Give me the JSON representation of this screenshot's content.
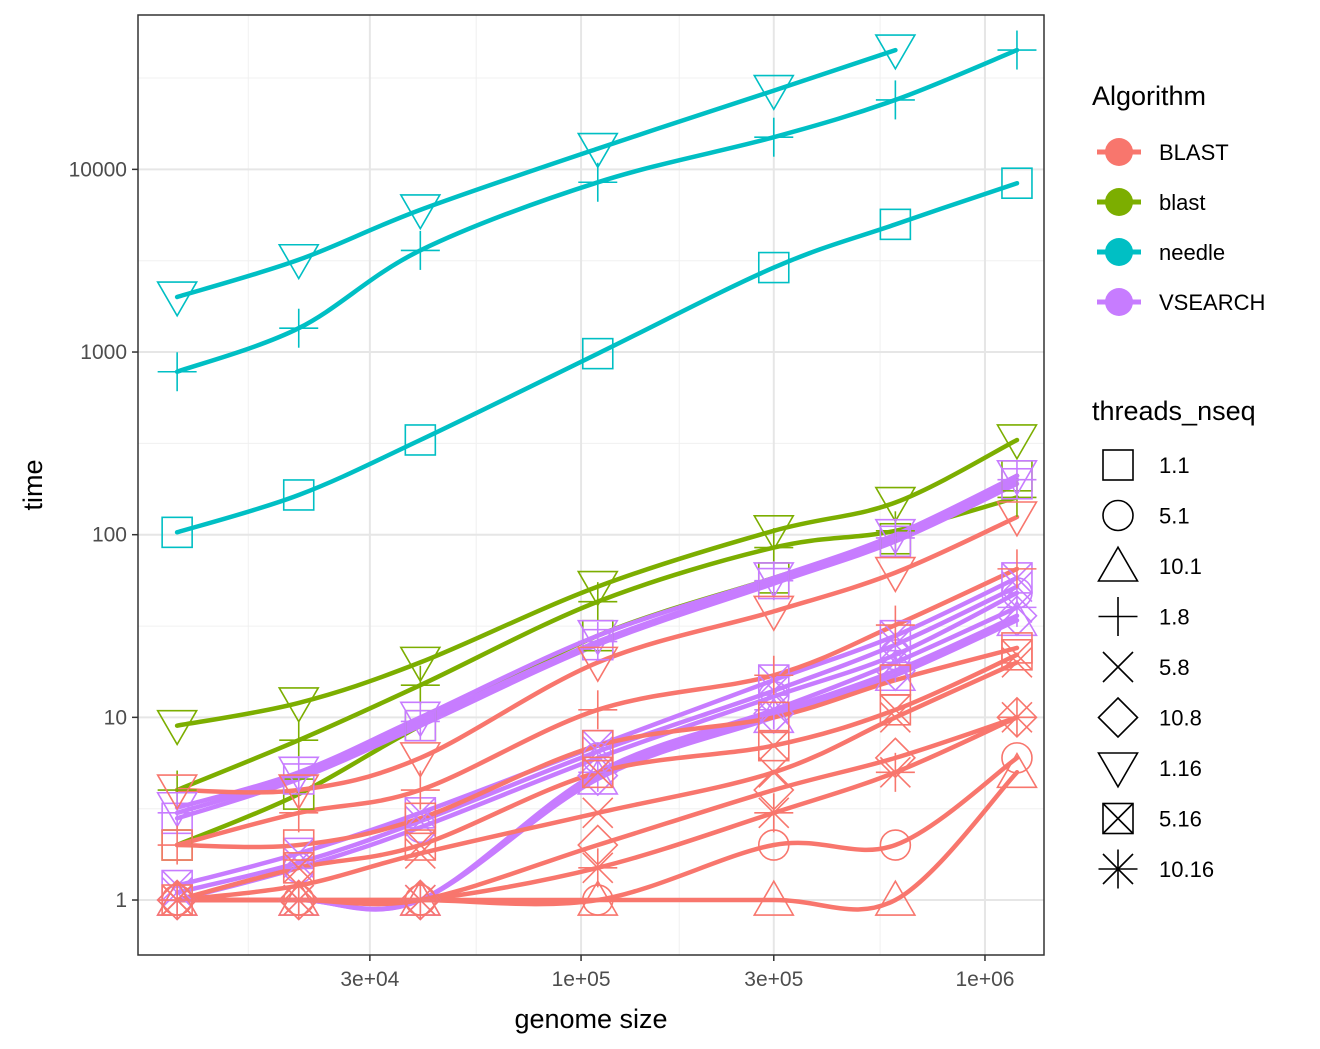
{
  "chart_data": {
    "type": "line",
    "xlabel": "genome size",
    "ylabel": "time",
    "x_scale": "log10",
    "y_scale": "log10",
    "xlim": [
      8000,
      1400000
    ],
    "ylim": [
      0.5,
      70000
    ],
    "x_ticks": [
      {
        "value": 30000,
        "label": "3e+04"
      },
      {
        "value": 100000,
        "label": "1e+05"
      },
      {
        "value": 300000,
        "label": "3e+05"
      },
      {
        "value": 1000000,
        "label": "1e+06"
      }
    ],
    "x_minor_gridlines": [
      15000,
      55000,
      175000,
      550000
    ],
    "y_ticks": [
      {
        "value": 1,
        "label": "1"
      },
      {
        "value": 10,
        "label": "10"
      },
      {
        "value": 100,
        "label": "100"
      },
      {
        "value": 1000,
        "label": "1000"
      },
      {
        "value": 10000,
        "label": "10000"
      }
    ],
    "y_minor_gridlines": [
      3.16,
      31.6,
      316,
      3162,
      31623
    ],
    "grid": true,
    "legend_position": "right",
    "legend_algorithm": {
      "title": "Algorithm",
      "items": [
        {
          "label": " BLAST",
          "color": "#F8766D"
        },
        {
          "label": "blast",
          "color": "#7CAE00"
        },
        {
          "label": "needle",
          "color": "#00BFC4"
        },
        {
          "label": "VSEARCH",
          "color": "#C77CFF"
        }
      ]
    },
    "legend_threads": {
      "title": "threads_nseq",
      "items": [
        {
          "label": "1.1",
          "shape": "square"
        },
        {
          "label": "5.1",
          "shape": "circle"
        },
        {
          "label": "10.1",
          "shape": "triangle-up"
        },
        {
          "label": "1.8",
          "shape": "plus"
        },
        {
          "label": "5.8",
          "shape": "cross"
        },
        {
          "label": "10.8",
          "shape": "diamond"
        },
        {
          "label": "1.16",
          "shape": "triangle-down"
        },
        {
          "label": "5.16",
          "shape": "square-cross"
        },
        {
          "label": "10.16",
          "shape": "asterisk"
        }
      ]
    },
    "x": [
      10000,
      20000,
      40000,
      110000,
      300000,
      600000,
      1200000
    ],
    "series": [
      {
        "algorithm": "needle",
        "threads_nseq": "1.16",
        "values": [
          2000,
          3200,
          6000,
          13000,
          27000,
          45000,
          null
        ]
      },
      {
        "algorithm": "needle",
        "threads_nseq": "1.8",
        "values": [
          780,
          1350,
          3600,
          8500,
          15000,
          24000,
          45000
        ]
      },
      {
        "algorithm": "needle",
        "threads_nseq": "1.1",
        "values": [
          103,
          165,
          330,
          980,
          2900,
          5000,
          8400
        ]
      },
      {
        "algorithm": "blast",
        "threads_nseq": "1.16",
        "values": [
          9,
          12,
          20,
          52,
          105,
          150,
          330
        ]
      },
      {
        "algorithm": "blast",
        "threads_nseq": "1.8",
        "values": [
          4,
          7.5,
          15,
          43,
          85,
          105,
          160
        ]
      },
      {
        "algorithm": "blast",
        "threads_nseq": "1.1",
        "values": [
          2,
          3.8,
          9,
          28,
          58,
          95,
          210
        ]
      },
      {
        "algorithm": "VSEARCH",
        "threads_nseq": "1.16",
        "values": [
          3.2,
          5,
          10,
          28,
          58,
          100,
          210
        ]
      },
      {
        "algorithm": "VSEARCH",
        "threads_nseq": "1.8",
        "values": [
          3,
          4.8,
          9.5,
          26,
          56,
          96,
          200
        ]
      },
      {
        "algorithm": "VSEARCH",
        "threads_nseq": "1.1",
        "values": [
          2.8,
          4.6,
          9,
          25,
          54,
          92,
          190
        ]
      },
      {
        "algorithm": "VSEARCH",
        "threads_nseq": "5.16",
        "values": [
          1.2,
          1.8,
          3,
          7,
          16,
          28,
          58
        ]
      },
      {
        "algorithm": "VSEARCH",
        "threads_nseq": "5.8",
        "values": [
          1.1,
          1.6,
          2.7,
          6.5,
          14,
          25,
          52
        ]
      },
      {
        "algorithm": "VSEARCH",
        "threads_nseq": "5.1",
        "values": [
          1,
          1.5,
          2.5,
          6,
          13,
          22,
          48
        ]
      },
      {
        "algorithm": "VSEARCH",
        "threads_nseq": "10.16",
        "values": [
          1,
          1,
          1,
          5,
          11,
          20,
          40
        ]
      },
      {
        "algorithm": "VSEARCH",
        "threads_nseq": "10.8",
        "values": [
          1,
          1,
          1,
          4.8,
          10.5,
          18,
          36
        ]
      },
      {
        "algorithm": "VSEARCH",
        "threads_nseq": "10.1",
        "values": [
          1,
          1,
          1,
          4.6,
          10,
          17,
          34
        ]
      },
      {
        "algorithm": " BLAST",
        "threads_nseq": "1.16",
        "values": [
          4,
          4,
          6,
          20,
          38,
          62,
          125
        ]
      },
      {
        "algorithm": " BLAST",
        "threads_nseq": "1.8",
        "values": [
          2,
          3,
          4,
          11,
          17,
          32,
          65
        ]
      },
      {
        "algorithm": " BLAST",
        "threads_nseq": "1.1",
        "values": [
          2,
          2,
          2.8,
          7,
          10,
          16,
          24
        ]
      },
      {
        "algorithm": " BLAST",
        "threads_nseq": "5.16",
        "values": [
          1,
          1.5,
          2,
          5,
          7,
          11,
          22
        ]
      },
      {
        "algorithm": " BLAST",
        "threads_nseq": "5.8",
        "values": [
          1,
          1.2,
          1.8,
          3,
          5,
          10,
          20
        ]
      },
      {
        "algorithm": " BLAST",
        "threads_nseq": "10.8",
        "values": [
          1,
          1,
          1,
          2,
          4,
          6,
          10
        ]
      },
      {
        "algorithm": " BLAST",
        "threads_nseq": "10.16",
        "values": [
          1,
          1,
          1,
          1.5,
          3,
          5,
          10
        ]
      },
      {
        "algorithm": " BLAST",
        "threads_nseq": "5.1",
        "values": [
          1,
          1,
          1,
          1,
          2,
          2,
          6
        ]
      },
      {
        "algorithm": " BLAST",
        "threads_nseq": "10.1",
        "values": [
          1,
          1,
          1,
          1,
          1,
          1,
          5
        ]
      }
    ]
  }
}
